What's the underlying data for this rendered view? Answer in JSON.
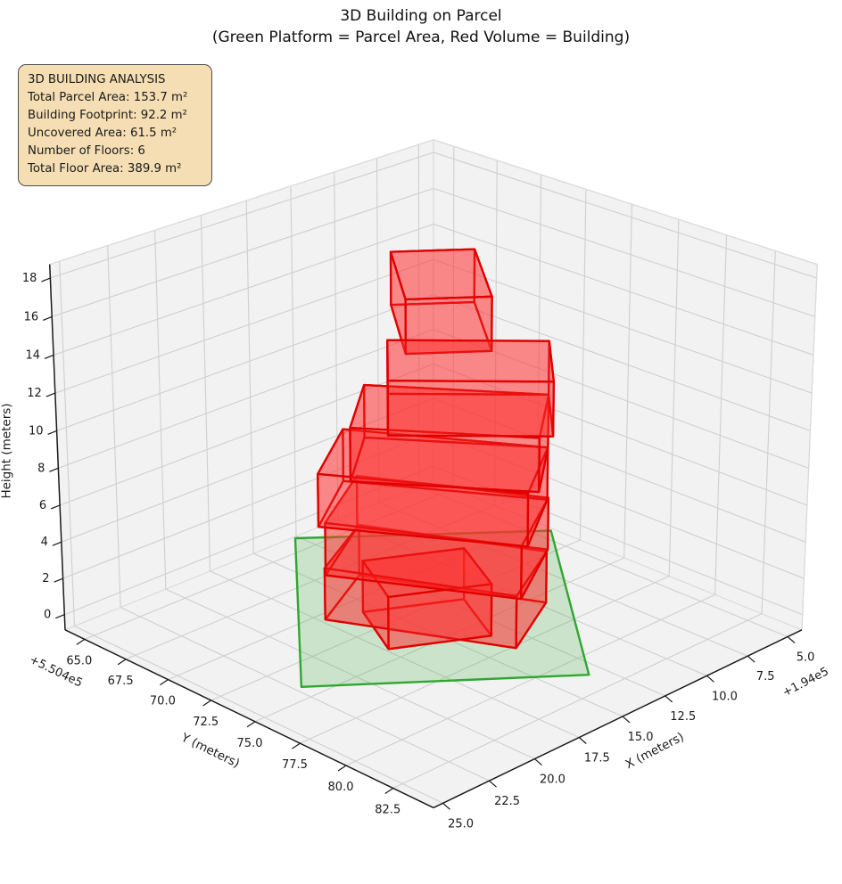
{
  "title": {
    "line1": "3D Building on Parcel",
    "line2": "(Green Platform = Parcel Area, Red Volume = Building)"
  },
  "info_box": {
    "lines": [
      "3D BUILDING ANALYSIS",
      "Total Parcel Area: 153.7 m²",
      "Building Footprint: 92.2 m²",
      "Uncovered Area: 61.5 m²",
      "Number of Floors: 6",
      "Total Floor Area: 389.9 m²"
    ]
  },
  "chart_data": {
    "type": "3d-building-parcel",
    "axes": {
      "x": {
        "label": "X (meters)",
        "offset_text": "+1.94e5",
        "lim": [
          4.1,
          25.5
        ],
        "tick_values": [
          5.0,
          7.5,
          10.0,
          12.5,
          15.0,
          17.5,
          20.0,
          22.5,
          25.0
        ],
        "tick_labels": [
          "5.0",
          "7.5",
          "10.0",
          "12.5",
          "15.0",
          "17.5",
          "20.0",
          "22.5",
          "25.0"
        ]
      },
      "y": {
        "label": "Y (meters)",
        "offset_text": "+5.504e5",
        "lim": [
          63.8,
          84.6
        ],
        "tick_values": [
          65.0,
          67.5,
          70.0,
          72.5,
          75.0,
          77.5,
          80.0,
          82.5
        ],
        "tick_labels": [
          "65.0",
          "67.5",
          "70.0",
          "72.5",
          "75.0",
          "77.5",
          "80.0",
          "82.5"
        ]
      },
      "z": {
        "label": "Height (meters)",
        "lim": [
          -0.85,
          18.7
        ],
        "tick_values": [
          0,
          2,
          4,
          6,
          8,
          10,
          12,
          14,
          16,
          18
        ],
        "tick_labels": [
          "0",
          "2",
          "4",
          "6",
          "8",
          "10",
          "12",
          "14",
          "16",
          "18"
        ]
      },
      "grid": true
    },
    "parcel": {
      "z": 0,
      "polygon_xy": [
        [
          13.7,
          65.0
        ],
        [
          5.4,
          72.0
        ],
        [
          14.3,
          82.2
        ],
        [
          23.1,
          75.1
        ]
      ],
      "area_label": "153.7 m²"
    },
    "building": {
      "num_floors": 6,
      "floor_height": 2.833,
      "total_height": 17.0,
      "floors": [
        {
          "z0": 0,
          "z1": 2.83,
          "center": [
            14.48,
            74.04
          ],
          "length": 4.4,
          "width": 8.0,
          "rotation_deg": 27
        },
        {
          "z0": 0,
          "z1": 2.83,
          "center": [
            15.6,
            74.6
          ],
          "length": 3.5,
          "width": 4.3,
          "rotation_deg": 62
        },
        {
          "z0": 2.83,
          "z1": 5.67,
          "center": [
            14.61,
            74.24
          ],
          "length": 4.8,
          "width": 8.0,
          "rotation_deg": 30
        },
        {
          "z0": 5.67,
          "z1": 8.5,
          "center": [
            14.92,
            74.33
          ],
          "length": 4.6,
          "width": 8.4,
          "rotation_deg": 33
        },
        {
          "z0": 8.5,
          "z1": 11.33,
          "center": [
            14.71,
            75.04
          ],
          "length": 4.4,
          "width": 7.4,
          "rotation_deg": 38
        },
        {
          "z0": 11.33,
          "z1": 14.17,
          "center": [
            14.45,
            75.82
          ],
          "length": 4.2,
          "width": 6.4,
          "rotation_deg": 45
        },
        {
          "z0": 14.17,
          "z1": 17.0,
          "center": [
            12.75,
            72.6
          ],
          "length": 5.3,
          "width": 3.4,
          "rotation_deg": 51
        }
      ]
    },
    "colors": {
      "building_fill": "#ff3030",
      "building_fill_alpha": 0.33,
      "building_edge": "#e10000",
      "parcel_fill": "#3fae3f",
      "parcel_fill_alpha": 0.22,
      "parcel_edge": "#2ea72e",
      "pane": "#f2f2f2",
      "grid_line": "#cfcfcf",
      "pane_edge": "#d9d9d9",
      "axis_line": "#1a1a1a",
      "text": "#1a1a1a",
      "info_box_bg": "#f5deb3"
    }
  }
}
